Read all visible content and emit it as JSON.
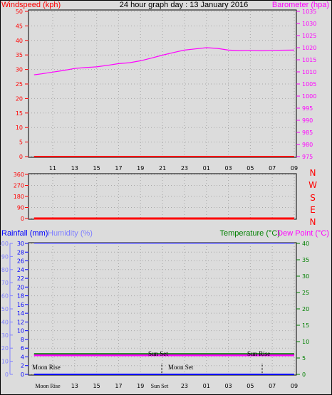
{
  "chart_data": [
    {
      "type": "line",
      "title": "24 hour graph day : 13 January 2016",
      "ylabel_left": "Windspeed (kph)",
      "ylabel_right": "Barometer (hpa)",
      "x_ticks": [
        "11",
        "13",
        "15",
        "17",
        "19",
        "21",
        "23",
        "01",
        "03",
        "05",
        "07",
        "09"
      ],
      "ylim_left": [
        0,
        50
      ],
      "yticks_left": [
        "0",
        "5",
        "10",
        "15",
        "20",
        "25",
        "30",
        "35",
        "40",
        "45",
        "50"
      ],
      "ylim_right": [
        975,
        1035
      ],
      "yticks_right": [
        "975",
        "980",
        "985",
        "990",
        "995",
        "1000",
        "1005",
        "1010",
        "1015",
        "1020",
        "1025",
        "1030",
        "1035"
      ],
      "grid": true,
      "series": [
        {
          "name": "Barometer (hpa)",
          "color": "#ff00ff",
          "axis": "right",
          "x": [
            9.3,
            10,
            11,
            12,
            13,
            14,
            15,
            16,
            17,
            18,
            19,
            20,
            21,
            22,
            23,
            24,
            25,
            26,
            27,
            28,
            29,
            30,
            31,
            33
          ],
          "y": [
            1008.8,
            1009.2,
            1009.9,
            1010.6,
            1011.4,
            1011.8,
            1012.1,
            1012.7,
            1013.4,
            1013.8,
            1014.6,
            1015.7,
            1016.9,
            1018.0,
            1019.0,
            1019.5,
            1020.0,
            1019.7,
            1019.0,
            1018.8,
            1018.9,
            1018.7,
            1018.9,
            1019.0
          ]
        },
        {
          "name": "Windspeed (kph)",
          "color": "#ff0000",
          "axis": "left",
          "x": [
            9.3,
            33
          ],
          "y": [
            0,
            0
          ]
        }
      ]
    },
    {
      "type": "line",
      "ylabel_left": "",
      "ylim_left": [
        0,
        360
      ],
      "yticks_left": [
        "0",
        "90",
        "180",
        "270",
        "360"
      ],
      "right_labels": [
        "N",
        "W",
        "S",
        "E",
        "N"
      ],
      "grid": true,
      "series": [
        {
          "name": "Wind Direction",
          "color": "#ff0000",
          "x": [
            9.3,
            33
          ],
          "y": [
            0,
            0
          ]
        }
      ]
    },
    {
      "type": "line",
      "label_rainfall": "Rainfall (mm)",
      "label_humidity": "Humidity (%)",
      "label_temperature": "Temperature (°C)",
      "label_dewpoint": "Dew Point (°C)",
      "ylim_rain": [
        0,
        30
      ],
      "yticks_rain": [
        "0",
        "2",
        "4",
        "6",
        "8",
        "10",
        "12",
        "14",
        "16",
        "18",
        "20",
        "22",
        "24",
        "26",
        "28",
        "30"
      ],
      "ylim_humidity": [
        0,
        100
      ],
      "yticks_humidity": [
        "0",
        "10",
        "20",
        "30",
        "40",
        "50",
        "60",
        "70",
        "80",
        "90",
        "100"
      ],
      "ylim_temp": [
        0,
        40
      ],
      "yticks_temp": [
        "0",
        "5",
        "10",
        "15",
        "20",
        "25",
        "30",
        "35",
        "40"
      ],
      "x_ticks": [
        "Moon Rise",
        "13",
        "15",
        "17",
        "19",
        "Sun Set",
        "23",
        "01",
        "03",
        "05",
        "07",
        "09"
      ],
      "grid": true,
      "annotations": {
        "sun_set": "Sun Set",
        "sun_rise": "Sun Rise",
        "moon_rise": "Moon Rise",
        "moon_set": "Moon Set"
      },
      "series": [
        {
          "name": "Humidity (%)",
          "color": "#8080ff",
          "axis": "humidity",
          "x": [
            9.3,
            33
          ],
          "y": [
            100,
            100
          ]
        },
        {
          "name": "Temperature (°C)",
          "color": "#008000",
          "axis": "temp",
          "x": [
            9.3,
            33
          ],
          "y": [
            6.2,
            6.2
          ]
        },
        {
          "name": "Dew Point (°C)",
          "color": "#ff00ff",
          "axis": "temp",
          "x": [
            9.3,
            33
          ],
          "y": [
            5.8,
            5.8
          ]
        },
        {
          "name": "Rainfall (mm)",
          "color": "#0000ff",
          "axis": "rain",
          "x": [
            9.3,
            33
          ],
          "y": [
            0,
            0
          ]
        }
      ]
    }
  ]
}
